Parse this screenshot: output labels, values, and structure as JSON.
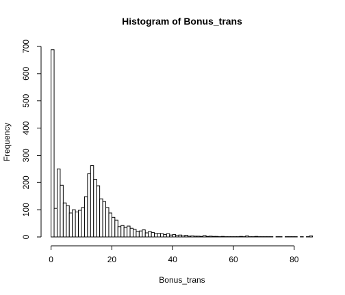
{
  "chart_data": {
    "type": "bar",
    "title": "Histogram of Bonus_trans",
    "xlabel": "Bonus_trans",
    "ylabel": "Frequency",
    "xlim": [
      0,
      86
    ],
    "ylim": [
      0,
      700
    ],
    "bin_width": 1,
    "x_ticks": [
      0,
      20,
      40,
      60,
      80
    ],
    "y_ticks": [
      0,
      100,
      200,
      300,
      400,
      500,
      600,
      700
    ],
    "bin_starts": [
      0,
      1,
      2,
      3,
      4,
      5,
      6,
      7,
      8,
      9,
      10,
      11,
      12,
      13,
      14,
      15,
      16,
      17,
      18,
      19,
      20,
      21,
      22,
      23,
      24,
      25,
      26,
      27,
      28,
      29,
      30,
      31,
      32,
      33,
      34,
      35,
      36,
      37,
      38,
      39,
      40,
      41,
      42,
      43,
      44,
      45,
      46,
      47,
      48,
      49,
      50,
      51,
      52,
      53,
      54,
      55,
      56,
      57,
      58,
      59,
      60,
      61,
      62,
      63,
      64,
      65,
      66,
      67,
      68,
      69,
      70,
      71,
      72,
      73,
      74,
      75,
      76,
      77,
      78,
      79,
      80,
      81,
      82,
      83,
      84,
      85
    ],
    "values": [
      688,
      105,
      250,
      190,
      125,
      115,
      88,
      100,
      92,
      98,
      108,
      148,
      232,
      262,
      212,
      188,
      140,
      130,
      108,
      88,
      72,
      62,
      38,
      42,
      35,
      40,
      32,
      28,
      20,
      22,
      26,
      15,
      20,
      16,
      12,
      13,
      12,
      9,
      12,
      7,
      9,
      5,
      7,
      4,
      6,
      3,
      4,
      3,
      3,
      2,
      5,
      2,
      3,
      2,
      2,
      1,
      2,
      1,
      1,
      1,
      1,
      1,
      2,
      1,
      4,
      1,
      1,
      2,
      1,
      1,
      1,
      1,
      1,
      0,
      1,
      1,
      0,
      1,
      1,
      1,
      1,
      0,
      1,
      0,
      1,
      4
    ],
    "grid": false
  }
}
